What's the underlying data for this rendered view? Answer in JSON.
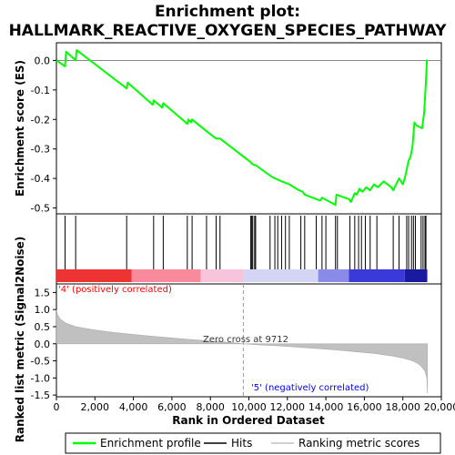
{
  "chart_data": {
    "type": "line",
    "title_line1": "Enrichment plot:",
    "title_line2": "HALLMARK_REACTIVE_OXYGEN_SPECIES_PATHWAY",
    "es_panel": {
      "ylabel": "Enrichment score (ES)",
      "ylim": [
        -0.52,
        0.06
      ],
      "yticks": [
        0.0,
        -0.1,
        -0.2,
        -0.3,
        -0.4,
        -0.5
      ],
      "ytick_labels": [
        "0.0",
        "-0.1",
        "-0.2",
        "-0.3",
        "-0.4",
        "-0.5"
      ],
      "series": [
        {
          "name": "Enrichment profile",
          "color": "#00ff00",
          "x": [
            0,
            450,
            500,
            1000,
            1050,
            3650,
            3700,
            5000,
            5050,
            5500,
            5550,
            6800,
            6850,
            7000,
            7050,
            7800,
            8300,
            8500,
            10100,
            10150,
            10300,
            10350,
            11200,
            11700,
            12100,
            12600,
            12800,
            12900,
            13500,
            13700,
            13800,
            14500,
            14550,
            15200,
            15300,
            15500,
            15600,
            15750,
            15900,
            16100,
            16300,
            16500,
            16700,
            17000,
            17400,
            17500,
            17800,
            18000,
            18100,
            18200,
            18300,
            18400,
            18500,
            18600,
            18700,
            19000,
            19100,
            19150,
            19200,
            19250,
            19270
          ],
          "y": [
            0.0,
            -0.02,
            0.03,
            0.0,
            0.035,
            -0.095,
            -0.075,
            -0.15,
            -0.135,
            -0.16,
            -0.145,
            -0.215,
            -0.2,
            -0.21,
            -0.2,
            -0.24,
            -0.265,
            -0.265,
            -0.345,
            -0.35,
            -0.355,
            -0.355,
            -0.395,
            -0.41,
            -0.42,
            -0.44,
            -0.445,
            -0.455,
            -0.47,
            -0.475,
            -0.465,
            -0.49,
            -0.455,
            -0.47,
            -0.48,
            -0.45,
            -0.455,
            -0.435,
            -0.445,
            -0.43,
            -0.44,
            -0.42,
            -0.43,
            -0.41,
            -0.43,
            -0.44,
            -0.4,
            -0.42,
            -0.4,
            -0.37,
            -0.34,
            -0.325,
            -0.29,
            -0.21,
            -0.22,
            -0.23,
            -0.18,
            -0.13,
            -0.07,
            -0.0,
            0.0
          ]
        }
      ]
    },
    "hits": {
      "name": "Hits",
      "positions": [
        450,
        1000,
        3650,
        5050,
        5550,
        6800,
        7050,
        7800,
        8300,
        8500,
        10100,
        10150,
        10200,
        10300,
        10350,
        11100,
        11350,
        11500,
        11700,
        11900,
        12100,
        12700,
        12900,
        13500,
        13800,
        14000,
        14500,
        14600,
        15250,
        15500,
        15700,
        15850,
        16050,
        16300,
        16650,
        17500,
        17800,
        18200,
        18300,
        18450,
        18550,
        18650,
        18950,
        19050,
        19150,
        19200
      ]
    },
    "ranked_panel": {
      "ylabel": "Ranked list metric (Signal2Noise)",
      "xlabel": "Rank in Ordered Dataset",
      "ylim": [
        -1.55,
        1.75
      ],
      "yticks": [
        1.5,
        1.0,
        0.5,
        0.0,
        -0.5,
        -1.0,
        -1.5
      ],
      "ytick_labels": [
        "1.5",
        "1.0",
        "0.5",
        "0.0",
        "-0.5",
        "-1.0",
        "-1.5"
      ],
      "xlim": [
        0,
        20000
      ],
      "xticks": [
        0,
        2000,
        4000,
        6000,
        8000,
        10000,
        12000,
        14000,
        16000,
        18000,
        20000
      ],
      "xtick_labels": [
        "0",
        "2,000",
        "4,000",
        "6,000",
        "8,000",
        "10,000",
        "12,000",
        "14,000",
        "16,000",
        "18,000",
        "20,000"
      ],
      "series": [
        {
          "name": "Ranking metric scores",
          "color": "#c0c0c0",
          "x": [
            0,
            50,
            200,
            500,
            1000,
            2000,
            3000,
            4000,
            5000,
            6000,
            7000,
            8000,
            9000,
            9712,
            10500,
            11500,
            12500,
            13500,
            14500,
            15500,
            16500,
            17500,
            18000,
            18500,
            18800,
            19000,
            19150,
            19250,
            19270
          ],
          "y": [
            1.0,
            0.85,
            0.72,
            0.6,
            0.5,
            0.4,
            0.33,
            0.27,
            0.22,
            0.17,
            0.12,
            0.08,
            0.04,
            0.0,
            -0.03,
            -0.06,
            -0.1,
            -0.14,
            -0.18,
            -0.23,
            -0.28,
            -0.36,
            -0.42,
            -0.5,
            -0.58,
            -0.68,
            -0.8,
            -1.0,
            -1.45
          ]
        }
      ],
      "zero_cross_label": "Zero cross at 9712",
      "zero_cross": 9712,
      "pos_label": "'4' (positively correlated)",
      "neg_label": "'5' (negatively correlated)"
    },
    "color_bar": {
      "total": 19270,
      "segments": [
        {
          "end": 3900,
          "color": "#ee3333"
        },
        {
          "end": 7500,
          "color": "#f88a9c"
        },
        {
          "end": 9712,
          "color": "#f8c4dc"
        },
        {
          "end": 13600,
          "color": "#d4d4f4"
        },
        {
          "end": 15200,
          "color": "#8a8ae8"
        },
        {
          "end": 18100,
          "color": "#3a3ad8"
        },
        {
          "end": 19270,
          "color": "#1a1aa0"
        }
      ]
    },
    "legend": [
      {
        "label": "Enrichment profile",
        "color": "#00ff00"
      },
      {
        "label": "Hits",
        "color": "#000000"
      },
      {
        "label": "Ranking metric scores",
        "color": "#c0c0c0"
      }
    ],
    "colors": {
      "es_line": "#00ff00",
      "pos_text": "#ff0000",
      "neg_text": "#0000ff"
    }
  }
}
